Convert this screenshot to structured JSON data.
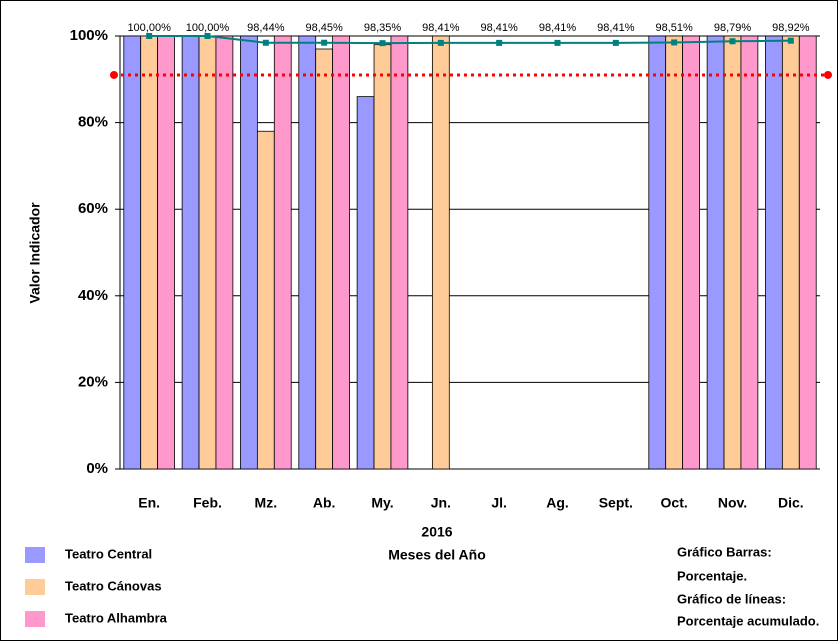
{
  "chart_data": {
    "type": "bar",
    "categories": [
      "En.",
      "Feb.",
      "Mz.",
      "Ab.",
      "My.",
      "Jn.",
      "Jl.",
      "Ag.",
      "Sept.",
      "Oct.",
      "Nov.",
      "Dic."
    ],
    "series": [
      {
        "name": "Teatro Central",
        "color": "#9999ff",
        "values": [
          100,
          100,
          100,
          100,
          86,
          null,
          null,
          null,
          null,
          100,
          100,
          100
        ]
      },
      {
        "name": "Teatro Cánovas",
        "color": "#ffcc99",
        "values": [
          100,
          100,
          78,
          97,
          98,
          100,
          null,
          null,
          null,
          100,
          100,
          100
        ]
      },
      {
        "name": "Teatro Alhambra",
        "color": "#ff99cc",
        "values": [
          100,
          100,
          100,
          100,
          100,
          null,
          null,
          null,
          null,
          100,
          100,
          100
        ]
      }
    ],
    "line": {
      "type": "line",
      "color": "#008080",
      "values": [
        100,
        100,
        98.44,
        98.45,
        98.35,
        98.41,
        98.41,
        98.41,
        98.41,
        98.51,
        98.79,
        98.92
      ],
      "value_labels": [
        "100,00%",
        "100,00%",
        "98,44%",
        "98,45%",
        "98,35%",
        "98,41%",
        "98,41%",
        "98,41%",
        "98,41%",
        "98,51%",
        "98,79%",
        "98,92%"
      ]
    },
    "reference_line": {
      "value": 91,
      "color": "#ff0000"
    },
    "ylabel": "Valor Indicador",
    "xlabel": [
      "2016",
      "Meses del Año"
    ],
    "annotation": [
      "Gráfico Barras:",
      "Porcentaje.",
      "Gráfico de líneas:",
      "Porcentaje acumulado."
    ],
    "ylim": [
      0,
      100
    ],
    "yticks": [
      {
        "value": 0,
        "label": "0%"
      },
      {
        "value": 20,
        "label": "20%"
      },
      {
        "value": 40,
        "label": "40%"
      },
      {
        "value": 60,
        "label": "60%"
      },
      {
        "value": 80,
        "label": "80%"
      },
      {
        "value": 100,
        "label": "100%"
      }
    ],
    "grid": true
  }
}
